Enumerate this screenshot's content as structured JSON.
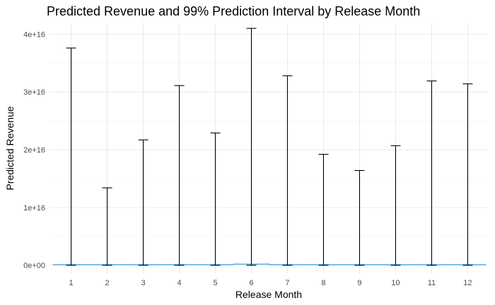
{
  "chart_data": {
    "type": "errorbar",
    "title": "Predicted Revenue and 99% Prediction Interval by Release Month",
    "xlabel": "Release Month",
    "ylabel": "Predicted Revenue",
    "x": [
      1,
      2,
      3,
      4,
      5,
      6,
      7,
      8,
      9,
      10,
      11,
      12
    ],
    "x_tick_labels": [
      "1",
      "2",
      "3",
      "4",
      "5",
      "6",
      "7",
      "8",
      "9",
      "10",
      "11",
      "12"
    ],
    "y_ticks": [
      0,
      1e+16,
      2e+16,
      3e+16,
      4e+16
    ],
    "y_tick_labels": [
      "0e+00",
      "1e+16",
      "2e+16",
      "3e+16",
      "4e+16"
    ],
    "ylim": [
      -1500000000000000.0,
      4.2e+16
    ],
    "xlim": [
      0.4,
      12.6
    ],
    "series": [
      {
        "predicted": [
          100000000000000.0,
          100000000000000.0,
          100000000000000.0,
          100000000000000.0,
          100000000000000.0,
          200000000000000.0,
          100000000000000.0,
          100000000000000.0,
          100000000000000.0,
          100000000000000.0,
          100000000000000.0,
          100000000000000.0
        ],
        "lower": [
          0,
          0,
          0,
          0,
          0,
          0,
          0,
          0,
          0,
          0,
          0,
          0
        ],
        "upper": [
          3.76e+16,
          1.34e+16,
          2.17e+16,
          3.11e+16,
          2.29e+16,
          4.1e+16,
          3.28e+16,
          1.92e+16,
          1.64e+16,
          2.07e+16,
          3.19e+16,
          3.14e+16
        ]
      }
    ],
    "grid": true,
    "colors": {
      "errorbar": "#000000",
      "predicted_line": "#5DADE2",
      "grid_major": "#ebebeb",
      "grid_minor": "#f5f5f5"
    }
  }
}
